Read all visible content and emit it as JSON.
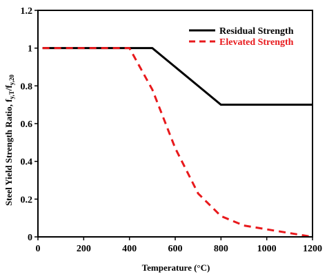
{
  "chart_data": {
    "type": "line",
    "title": "",
    "xlabel": "Temperature (°C)",
    "ylabel_main": "Steel Yield Strength Ratio, f",
    "ylabel_sub1": "y,T",
    "ylabel_slash": "/f",
    "ylabel_sub2": "y,20",
    "xlim": [
      0,
      1200
    ],
    "ylim": [
      0,
      1.2
    ],
    "x_ticks": [
      0,
      200,
      400,
      600,
      800,
      1000,
      1200
    ],
    "y_ticks": [
      0,
      0.2,
      0.4,
      0.6,
      0.8,
      1,
      1.2
    ],
    "y_tick_labels": [
      "0",
      "0.2",
      "0.4",
      "0.6",
      "0.8",
      "1",
      "1.2"
    ],
    "grid": false,
    "legend_position": "top-right",
    "series": [
      {
        "name": "Residual Strength",
        "color": "#000000",
        "style": "solid",
        "x": [
          20,
          500,
          800,
          1200
        ],
        "y": [
          1.0,
          1.0,
          0.7,
          0.7
        ]
      },
      {
        "name": "Elevated Strength",
        "color": "#e8191c",
        "style": "dashed",
        "x": [
          20,
          100,
          200,
          300,
          400,
          500,
          600,
          700,
          800,
          900,
          1000,
          1100,
          1200
        ],
        "y": [
          1.0,
          1.0,
          1.0,
          1.0,
          1.0,
          0.78,
          0.47,
          0.23,
          0.11,
          0.06,
          0.04,
          0.02,
          0.0
        ]
      }
    ]
  }
}
